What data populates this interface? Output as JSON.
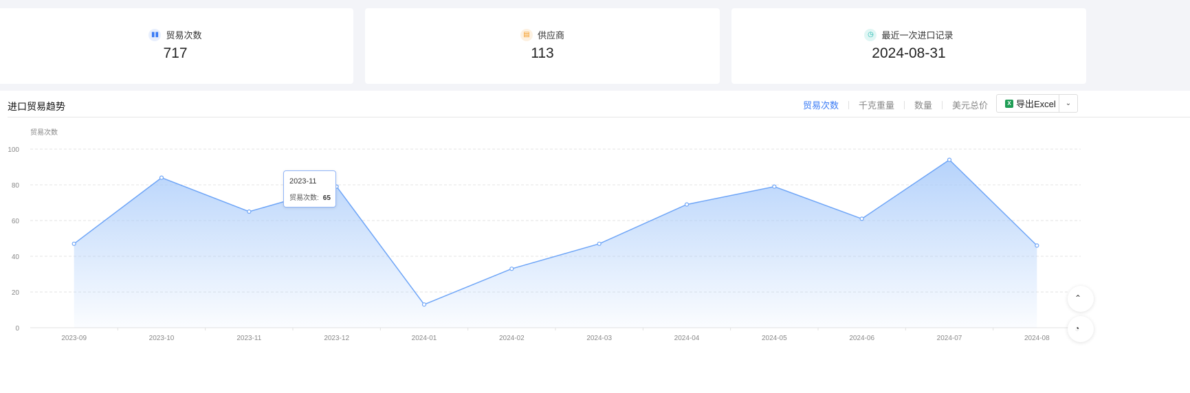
{
  "stats": [
    {
      "label": "贸易次数",
      "value": "717",
      "icon": "bar-chart-icon",
      "color": "#3a7bf5",
      "bg": "#e8effd"
    },
    {
      "label": "供应商",
      "value": "113",
      "icon": "store-icon",
      "color": "#f59a23",
      "bg": "#fdf1e1"
    },
    {
      "label": "最近一次进口记录",
      "value": "2024-08-31",
      "icon": "clock-icon",
      "color": "#20b9b0",
      "bg": "#e0f6f4"
    }
  ],
  "panel": {
    "title": "进口贸易趋势",
    "tabs": [
      "贸易次数",
      "千克重量",
      "数量",
      "美元总价"
    ],
    "active_tab": 0,
    "export_label": "导出Excel"
  },
  "tooltip": {
    "title": "2023-11",
    "label": "贸易次数:",
    "value": "65"
  },
  "chart_data": {
    "type": "area",
    "ylabel": "贸易次数",
    "categories": [
      "2023-09",
      "2023-10",
      "2023-11",
      "2023-12",
      "2024-01",
      "2024-02",
      "2024-03",
      "2024-04",
      "2024-05",
      "2024-06",
      "2024-07",
      "2024-08"
    ],
    "values": [
      47,
      84,
      65,
      79,
      13,
      33,
      47,
      69,
      79,
      61,
      94,
      46
    ],
    "ylim": [
      0,
      100
    ],
    "yticks": [
      0,
      20,
      40,
      60,
      80,
      100
    ],
    "grid": true,
    "color": "#6ea5f7"
  }
}
